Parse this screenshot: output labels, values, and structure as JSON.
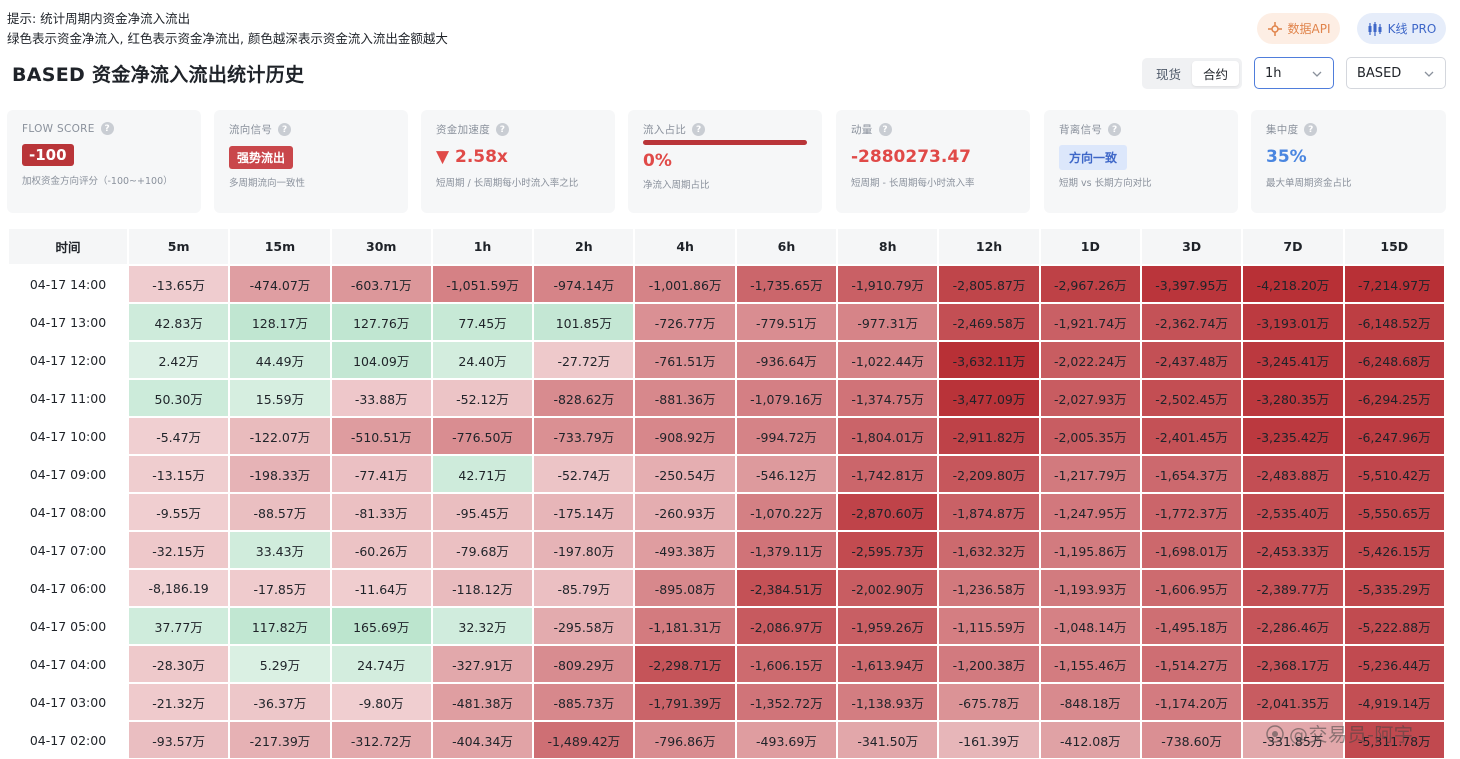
{
  "hint": {
    "line1": "提示: 统计周期内资金净流入流出",
    "line2": "绿色表示资金净流入, 红色表示资金净流出, 颜色越深表示资金流入流出金额越大"
  },
  "title": "BASED 资金净流入流出统计历史",
  "buttons": {
    "api": "数据API",
    "kline": "K线 PRO"
  },
  "market_toggle": {
    "spot": "现货",
    "contract": "合约",
    "active": "合约"
  },
  "timeframe": {
    "value": "1h"
  },
  "symbol": {
    "value": "BASED"
  },
  "metrics": {
    "flow_score": {
      "label": "FLOW SCORE",
      "value": "-100",
      "desc": "加权资金方向评分（-100~+100）"
    },
    "direction": {
      "label": "流向信号",
      "value": "强势流出",
      "desc": "多周期流向一致性"
    },
    "acceleration": {
      "label": "资金加速度",
      "value": "▼ 2.58x",
      "desc": "短周期 / 长周期每小时流入率之比"
    },
    "inflow_ratio": {
      "label": "流入占比",
      "value": "0%",
      "desc": "净流入周期占比",
      "fraction": 0
    },
    "momentum": {
      "label": "动量",
      "value": "-2880273.47",
      "desc": "短周期 - 长周期每小时流入率"
    },
    "divergence": {
      "label": "背离信号",
      "value": "方向一致",
      "desc": "短期 vs 长期方向对比"
    },
    "concentration": {
      "label": "集中度",
      "value": "35%",
      "desc": "最大单周期资金占比"
    }
  },
  "colors": {
    "accent_blue": "#3e67c8",
    "outflow_red": "#b93539",
    "inflow_green": "#2fae6b"
  },
  "table": {
    "headers": [
      "时间",
      "5m",
      "15m",
      "30m",
      "1h",
      "2h",
      "4h",
      "6h",
      "8h",
      "12h",
      "1D",
      "3D",
      "7D",
      "15D"
    ],
    "rows": [
      {
        "time": "04-17 14:00",
        "cells": [
          "-13.65万",
          "-474.07万",
          "-603.71万",
          "-1,051.59万",
          "-974.14万",
          "-1,001.86万",
          "-1,735.65万",
          "-1,910.79万",
          "-2,805.87万",
          "-2,967.26万",
          "-3,397.95万",
          "-4,218.20万",
          "-7,214.97万"
        ]
      },
      {
        "time": "04-17 13:00",
        "cells": [
          "42.83万",
          "128.17万",
          "127.76万",
          "77.45万",
          "101.85万",
          "-726.77万",
          "-779.51万",
          "-977.31万",
          "-2,469.58万",
          "-1,921.74万",
          "-2,362.74万",
          "-3,193.01万",
          "-6,148.52万"
        ]
      },
      {
        "time": "04-17 12:00",
        "cells": [
          "2.42万",
          "44.49万",
          "104.09万",
          "24.40万",
          "-27.72万",
          "-761.51万",
          "-936.64万",
          "-1,022.44万",
          "-3,632.11万",
          "-2,022.24万",
          "-2,437.48万",
          "-3,245.41万",
          "-6,248.68万"
        ]
      },
      {
        "time": "04-17 11:00",
        "cells": [
          "50.30万",
          "15.59万",
          "-33.88万",
          "-52.12万",
          "-828.62万",
          "-881.36万",
          "-1,079.16万",
          "-1,374.75万",
          "-3,477.09万",
          "-2,027.93万",
          "-2,502.45万",
          "-3,280.35万",
          "-6,294.25万"
        ]
      },
      {
        "time": "04-17 10:00",
        "cells": [
          "-5.47万",
          "-122.07万",
          "-510.51万",
          "-776.50万",
          "-733.79万",
          "-908.92万",
          "-994.72万",
          "-1,804.01万",
          "-2,911.82万",
          "-2,005.35万",
          "-2,401.45万",
          "-3,235.42万",
          "-6,247.96万"
        ]
      },
      {
        "time": "04-17 09:00",
        "cells": [
          "-13.15万",
          "-198.33万",
          "-77.41万",
          "42.71万",
          "-52.74万",
          "-250.54万",
          "-546.12万",
          "-1,742.81万",
          "-2,209.80万",
          "-1,217.79万",
          "-1,654.37万",
          "-2,483.88万",
          "-5,510.42万"
        ]
      },
      {
        "time": "04-17 08:00",
        "cells": [
          "-9.55万",
          "-88.57万",
          "-81.33万",
          "-95.45万",
          "-175.14万",
          "-260.93万",
          "-1,070.22万",
          "-2,870.60万",
          "-1,874.87万",
          "-1,247.95万",
          "-1,772.37万",
          "-2,535.40万",
          "-5,550.65万"
        ]
      },
      {
        "time": "04-17 07:00",
        "cells": [
          "-32.15万",
          "33.43万",
          "-60.26万",
          "-79.68万",
          "-197.80万",
          "-493.38万",
          "-1,379.11万",
          "-2,595.73万",
          "-1,632.32万",
          "-1,195.86万",
          "-1,698.01万",
          "-2,453.33万",
          "-5,426.15万"
        ]
      },
      {
        "time": "04-17 06:00",
        "cells": [
          "-8,186.19",
          "-17.85万",
          "-11.64万",
          "-118.12万",
          "-85.79万",
          "-895.08万",
          "-2,384.51万",
          "-2,002.90万",
          "-1,236.58万",
          "-1,193.93万",
          "-1,606.95万",
          "-2,389.77万",
          "-5,335.29万"
        ]
      },
      {
        "time": "04-17 05:00",
        "cells": [
          "37.77万",
          "117.82万",
          "165.69万",
          "32.32万",
          "-295.58万",
          "-1,181.31万",
          "-2,086.97万",
          "-1,959.26万",
          "-1,115.59万",
          "-1,048.14万",
          "-1,495.18万",
          "-2,286.46万",
          "-5,222.88万"
        ]
      },
      {
        "time": "04-17 04:00",
        "cells": [
          "-28.30万",
          "5.29万",
          "24.74万",
          "-327.91万",
          "-809.29万",
          "-2,298.71万",
          "-1,606.15万",
          "-1,613.94万",
          "-1,200.38万",
          "-1,155.46万",
          "-1,514.27万",
          "-2,368.17万",
          "-5,236.44万"
        ]
      },
      {
        "time": "04-17 03:00",
        "cells": [
          "-21.32万",
          "-36.37万",
          "-9.80万",
          "-481.38万",
          "-885.73万",
          "-1,791.39万",
          "-1,352.72万",
          "-1,138.93万",
          "-675.78万",
          "-848.18万",
          "-1,174.20万",
          "-2,041.35万",
          "-4,919.14万"
        ]
      },
      {
        "time": "04-17 02:00",
        "cells": [
          "-93.57万",
          "-217.39万",
          "-312.72万",
          "-404.34万",
          "-1,489.42万",
          "-796.86万",
          "-493.69万",
          "-341.50万",
          "-161.39万",
          "-412.08万",
          "-738.60万",
          "-331.85万",
          "-5,311.78万"
        ]
      }
    ]
  },
  "watermark": "@交易员-阿宇"
}
